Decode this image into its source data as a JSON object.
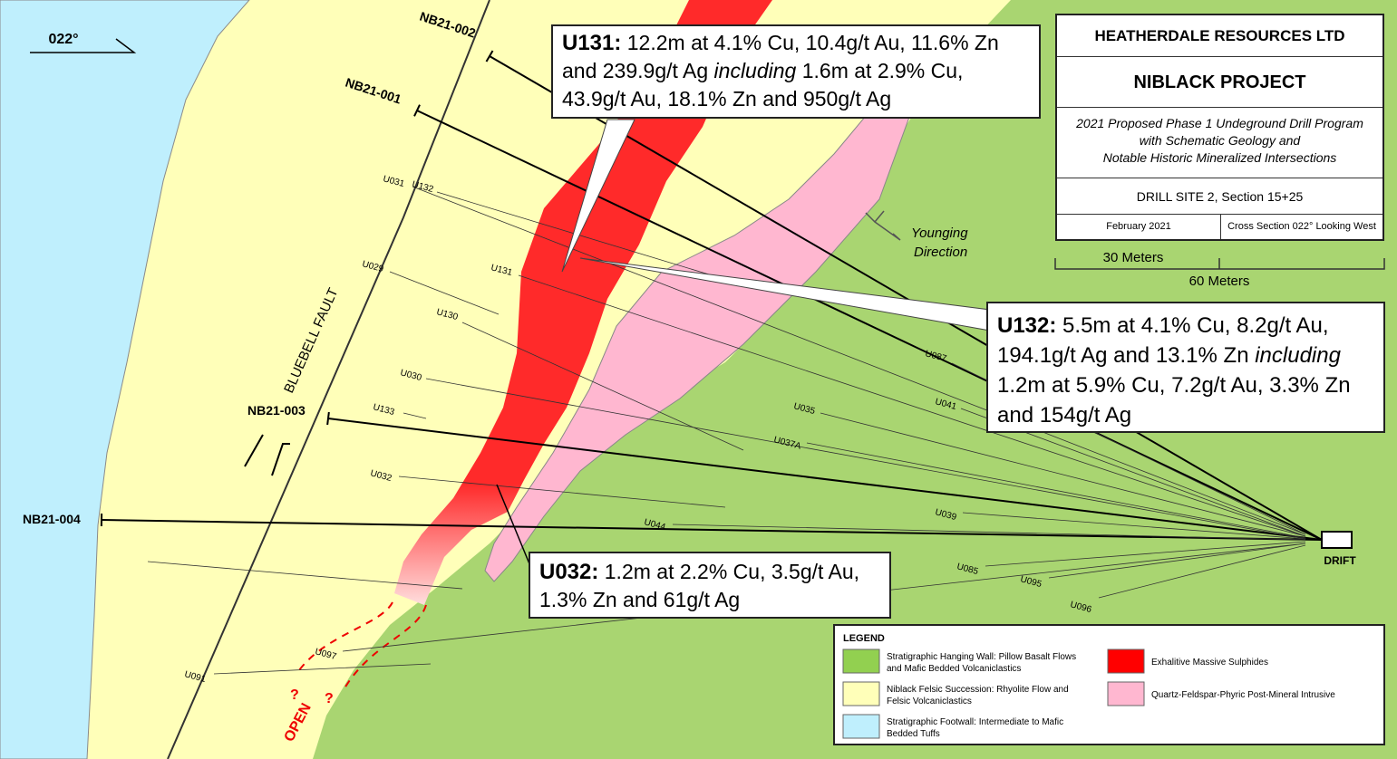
{
  "north_arrow": "022°",
  "title_block": {
    "company": "HEATHERDALE RESOURCES LTD",
    "project": "NIBLACK PROJECT",
    "description": [
      "2021 Proposed Phase 1 Undeground Drill Program",
      "with Schematic Geology and",
      "Notable Historic Mineralized Intersections"
    ],
    "section": "DRILL SITE 2, Section 15+25",
    "date": "February 2021",
    "view": "Cross Section 022° Looking West"
  },
  "scale": [
    "30 Meters",
    "60 Meters"
  ],
  "callouts": [
    {
      "label": "U131:",
      "parts": [
        "12.2m at 4.1% Cu, 10.4g/t Au, 11.6% Zn and 239.9g/t Ag ",
        "including",
        " 1.6m at 2.9% Cu, 43.9g/t Au, 18.1% Zn and 950g/t Ag"
      ]
    },
    {
      "label": "U132:",
      "parts": [
        "5.5m at 4.1% Cu, 8.2g/t Au, 194.1g/t Ag and 13.1% Zn ",
        "including",
        " 1.2m at 5.9% Cu, 7.2g/t Au, 3.3% Zn and 154g/t Ag"
      ]
    },
    {
      "label": "U032:",
      "parts": [
        "1.2m at 2.2% Cu, 3.5g/t Au, 1.3% Zn and 61g/t Ag"
      ]
    }
  ],
  "proposed_holes": [
    "NB21-002",
    "NB21-001",
    "NB21-003",
    "NB21-004"
  ],
  "historic_holes": [
    "U031",
    "U132",
    "U029",
    "U131",
    "U130",
    "U030",
    "U133",
    "U032",
    "U087",
    "U035",
    "U041",
    "U037A",
    "U039",
    "U044",
    "U085",
    "U095",
    "U096",
    "U097",
    "U091"
  ],
  "labels": {
    "fault": "BLUEBELL FAULT",
    "younging": [
      "Younging",
      "Direction"
    ],
    "drift": "DRIFT",
    "open": "OPEN",
    "question": "?"
  },
  "legend": {
    "title": "LEGEND",
    "items": [
      {
        "color": "#92d050",
        "lines": [
          "Stratigraphic Hanging Wall: Pillow Basalt Flows",
          "and Mafic Bedded Volcaniclastics"
        ]
      },
      {
        "color": "#ffffb9",
        "lines": [
          "Niblack Felsic Succession: Rhyolite Flow and",
          "Felsic Volcaniclastics"
        ]
      },
      {
        "color": "#bfeffd",
        "lines": [
          "Stratigraphic Footwall: Intermediate to Mafic",
          "Bedded Tuffs"
        ]
      },
      {
        "color": "#ff0000",
        "lines": [
          "Exhalitive Massive Sulphides"
        ]
      },
      {
        "color": "#ffb7d0",
        "lines": [
          "Quartz-Feldspar-Phyric Post-Mineral Intrusive"
        ]
      }
    ]
  }
}
